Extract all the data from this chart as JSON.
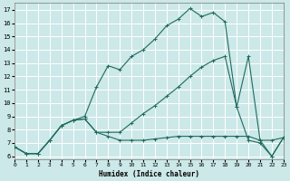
{
  "xlabel": "Humidex (Indice chaleur)",
  "bg_color": "#cce8e8",
  "grid_color": "#ffffff",
  "line_color": "#1e6b5e",
  "line1_y": [
    6.7,
    6.2,
    6.2,
    7.2,
    8.3,
    8.7,
    8.8,
    7.8,
    7.5,
    7.2,
    7.2,
    7.2,
    7.3,
    7.4,
    7.5,
    7.5,
    7.5,
    7.5,
    7.5,
    7.5,
    7.5,
    7.2,
    7.2,
    7.4
  ],
  "line2_y": [
    6.7,
    6.2,
    6.2,
    7.2,
    8.3,
    8.7,
    8.8,
    7.8,
    7.8,
    7.8,
    8.5,
    9.2,
    9.8,
    10.5,
    11.2,
    12.0,
    12.7,
    13.2,
    13.5,
    9.7,
    7.2,
    7.0,
    6.0,
    7.4
  ],
  "line3_y": [
    6.7,
    6.2,
    6.2,
    7.2,
    8.3,
    8.7,
    9.0,
    11.2,
    12.8,
    12.5,
    13.5,
    14.0,
    14.8,
    15.8,
    16.3,
    17.1,
    16.5,
    16.8,
    16.1,
    9.7,
    13.5,
    7.2,
    6.0,
    7.4
  ],
  "xlim": [
    0,
    23
  ],
  "ylim": [
    5.8,
    17.5
  ],
  "yticks": [
    6,
    7,
    8,
    9,
    10,
    11,
    12,
    13,
    14,
    15,
    16,
    17
  ],
  "xticks": [
    0,
    1,
    2,
    3,
    4,
    5,
    6,
    7,
    8,
    9,
    10,
    11,
    12,
    13,
    14,
    15,
    16,
    17,
    18,
    19,
    20,
    21,
    22,
    23
  ]
}
